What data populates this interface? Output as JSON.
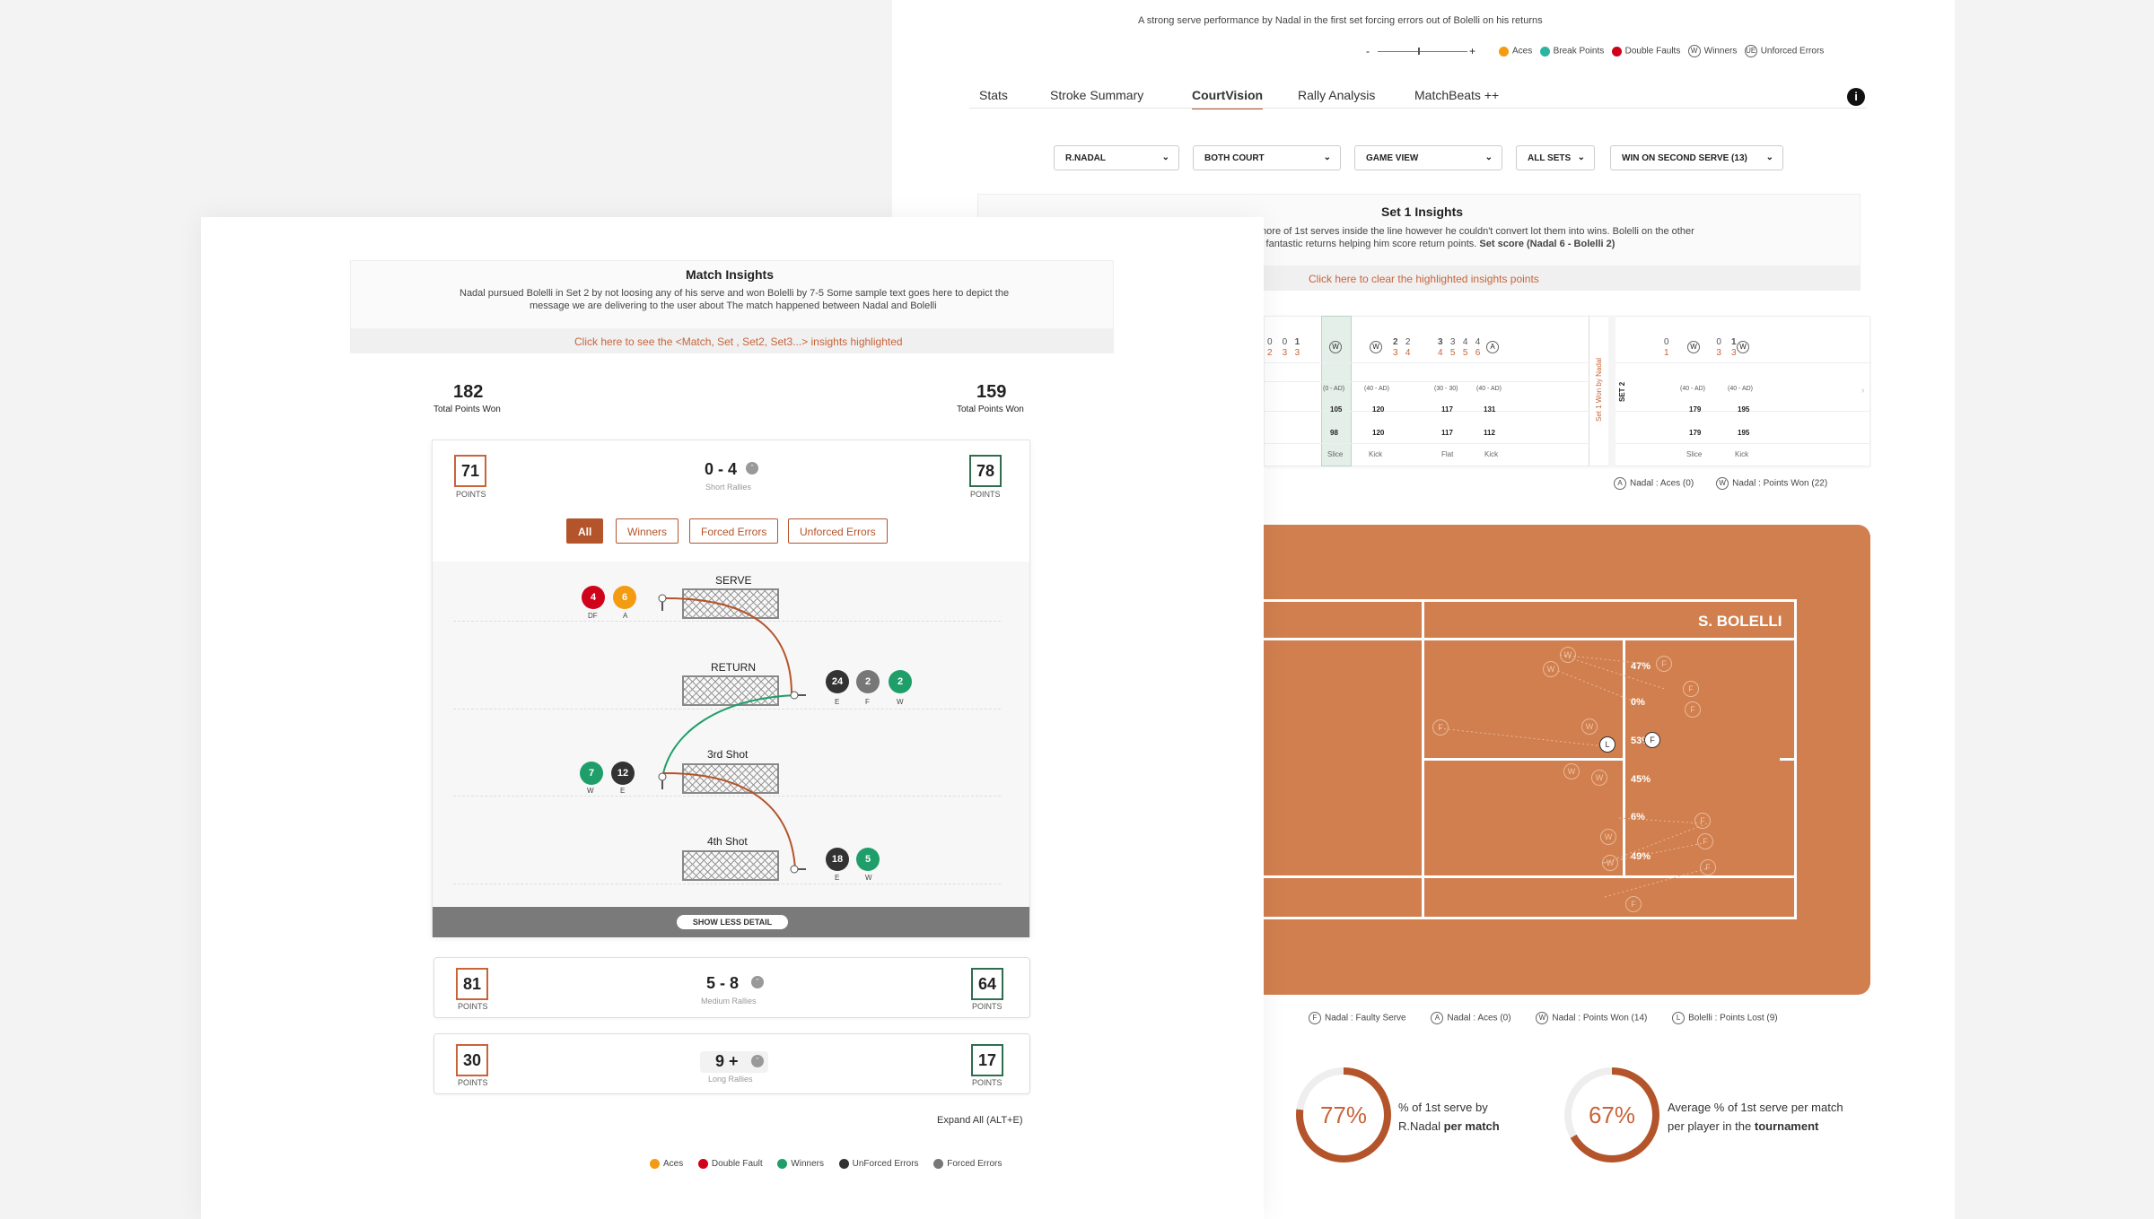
{
  "back": {
    "top_message": "A strong serve performance by Nadal  in the first set forcing errors out of Bolelli on his returns",
    "zoom": {
      "minus": "-",
      "plus": "+"
    },
    "legend": [
      {
        "label": "Aces",
        "color": "#f39c12"
      },
      {
        "label": "Break Points",
        "color": "#2bb5a0"
      },
      {
        "label": "Double Faults",
        "color": "#d0021b"
      },
      {
        "label": "Winners",
        "icon": "W"
      },
      {
        "label": "Unforced Errors",
        "icon": "UE"
      }
    ],
    "tabs": [
      "Stats",
      "Stroke Summary",
      "CourtVision",
      "Rally Analysis",
      "MatchBeats ++"
    ],
    "active_tab": "CourtVision",
    "dropdowns": [
      "R.NADAL",
      "BOTH COURT",
      "GAME VIEW",
      "ALL SETS",
      "WIN ON SECOND SERVE (13)"
    ],
    "set_insights": {
      "title": "Set 1 Insights",
      "line1": "more of 1st serves inside the line however he couldn't convert lot them into wins. Bolelli on the other",
      "line2": "it fantastic returns helping him score return points.",
      "line2_bold": "Set score (Nadal 6 - Bolelli 2)",
      "link": "Click here to clear the highlighted insights points"
    },
    "timeline": {
      "set1_label": "Set 1 Won by Nadal",
      "set2_label": "SET 2",
      "deuce_labels": [
        "(0 - AD)",
        "(40 - AD)",
        "(30 - 30)",
        "(40 - AD)",
        "(40 - AD)",
        "(40 - AD)"
      ],
      "speeds_row1": [
        "105",
        "120",
        "117",
        "131",
        "179",
        "195"
      ],
      "speeds_row2": [
        "98",
        "120",
        "117",
        "112",
        "179",
        "195"
      ],
      "stroke_types": [
        "Slice",
        "Kick",
        "Flat",
        "Kick",
        "Slice",
        "Kick"
      ],
      "legend_aces": "Nadal : Aces (0)",
      "legend_won": "Nadal : Points Won (22)"
    },
    "court": {
      "player": "S. BOLELLI",
      "percentages": [
        "47%",
        "0%",
        "53%",
        "45%",
        "6%",
        "49%"
      ],
      "legend": [
        {
          "icon": "F",
          "label": "Nadal : Faulty Serve"
        },
        {
          "icon": "A",
          "label": "Nadal : Aces (0)"
        },
        {
          "icon": "W",
          "label": "Nadal : Points Won (14)"
        },
        {
          "icon": "L",
          "label": "Bolelli : Points Lost (9)"
        }
      ]
    },
    "gauges": [
      {
        "value": "77%",
        "fraction": 0.77,
        "text": "% of 1st serve by",
        "text2": "R.Nadal",
        "bold": "per match"
      },
      {
        "value": "67%",
        "fraction": 0.67,
        "text": "Average % of  1st serve per match",
        "text2": "per player in the",
        "bold": "tournament"
      }
    ]
  },
  "front": {
    "insights": {
      "title": "Match Insights",
      "line1": "Nadal pursued Bolelli in Set 2 by  not loosing any of his serve and won Bolelli by 7-5 Some sample text goes here to depict the",
      "line2": "message we are delivering to the user about  The match happened between Nadal and Bolelli",
      "link": "Click here to see the <Match, Set , Set2, Set3...> insights highlighted"
    },
    "total_left": {
      "value": "182",
      "label": "Total Points Won"
    },
    "total_right": {
      "value": "159",
      "label": "Total Points Won"
    },
    "short": {
      "left": "71",
      "right": "78",
      "score": "0 - 4",
      "label": "Short Rallies",
      "points": "POINTS"
    },
    "filters": [
      "All",
      "Winners",
      "Forced Errors",
      "Unforced Errors"
    ],
    "shots": [
      "SERVE",
      "RETURN",
      "3rd Shot",
      "4th Shot"
    ],
    "serve_balls": [
      {
        "v": "4",
        "l": "DF"
      },
      {
        "v": "6",
        "l": "A"
      }
    ],
    "return_balls": [
      {
        "v": "24",
        "l": "E"
      },
      {
        "v": "2",
        "l": "F"
      },
      {
        "v": "2",
        "l": "W"
      }
    ],
    "third_balls": [
      {
        "v": "7",
        "l": "W"
      },
      {
        "v": "12",
        "l": "E"
      }
    ],
    "fourth_balls": [
      {
        "v": "18",
        "l": "E"
      },
      {
        "v": "5",
        "l": "W"
      }
    ],
    "show_less": "SHOW LESS DETAIL",
    "medium": {
      "left": "81",
      "right": "64",
      "score": "5 - 8",
      "label": "Medium Rallies"
    },
    "long": {
      "left": "30",
      "right": "17",
      "score": "9 +",
      "label": "Long Rallies"
    },
    "expand": "Expand All (ALT+E)",
    "legend": [
      {
        "label": "Aces",
        "color": "#f39c12"
      },
      {
        "label": "Double Fault",
        "color": "#d0021b"
      },
      {
        "label": "Winners",
        "color": "#1f9e6a"
      },
      {
        "label": "UnForced Errors",
        "color": "#333333"
      },
      {
        "label": "Forced Errors",
        "color": "#777777"
      }
    ]
  }
}
